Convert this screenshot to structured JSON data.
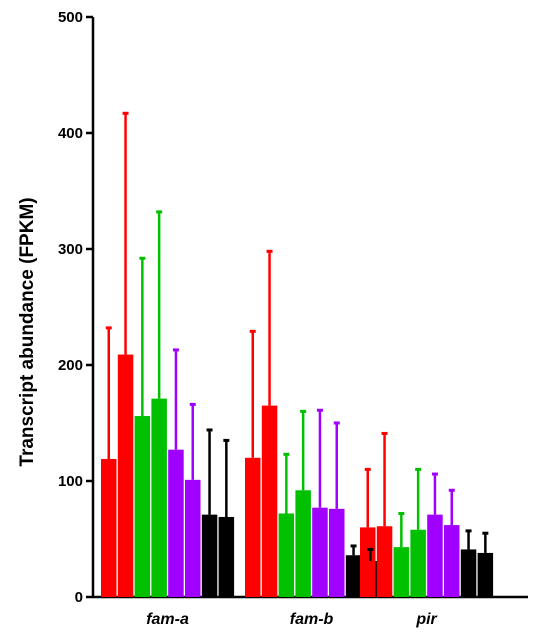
{
  "chart_data": {
    "type": "bar",
    "title": "",
    "xlabel": "",
    "ylabel": "Transcript abundance (FPKM)",
    "ylim": [
      0,
      500
    ],
    "yticks": [
      0,
      100,
      200,
      300,
      400,
      500
    ],
    "categories": [
      "fam-a",
      "fam-b",
      "pir"
    ],
    "grid": false,
    "legend": "none",
    "series": [
      {
        "color": "#ff0000",
        "values": [
          119,
          120,
          60
        ],
        "errors": [
          113,
          109,
          50
        ]
      },
      {
        "color": "#ff0000",
        "values": [
          209,
          165,
          61
        ],
        "errors": [
          208,
          133,
          80
        ]
      },
      {
        "color": "#00c000",
        "values": [
          156,
          72,
          43
        ],
        "errors": [
          136,
          51,
          29
        ]
      },
      {
        "color": "#00c000",
        "values": [
          171,
          92,
          58
        ],
        "errors": [
          161,
          68,
          52
        ]
      },
      {
        "color": "#a000ff",
        "values": [
          127,
          77,
          71
        ],
        "errors": [
          86,
          84,
          35
        ]
      },
      {
        "color": "#a000ff",
        "values": [
          101,
          76,
          62
        ],
        "errors": [
          65,
          74,
          30
        ]
      },
      {
        "color": "#000000",
        "values": [
          71,
          36,
          41
        ],
        "errors": [
          73,
          8,
          16
        ]
      },
      {
        "color": "#000000",
        "values": [
          69,
          31,
          38
        ],
        "errors": [
          66,
          10,
          17
        ]
      }
    ]
  }
}
